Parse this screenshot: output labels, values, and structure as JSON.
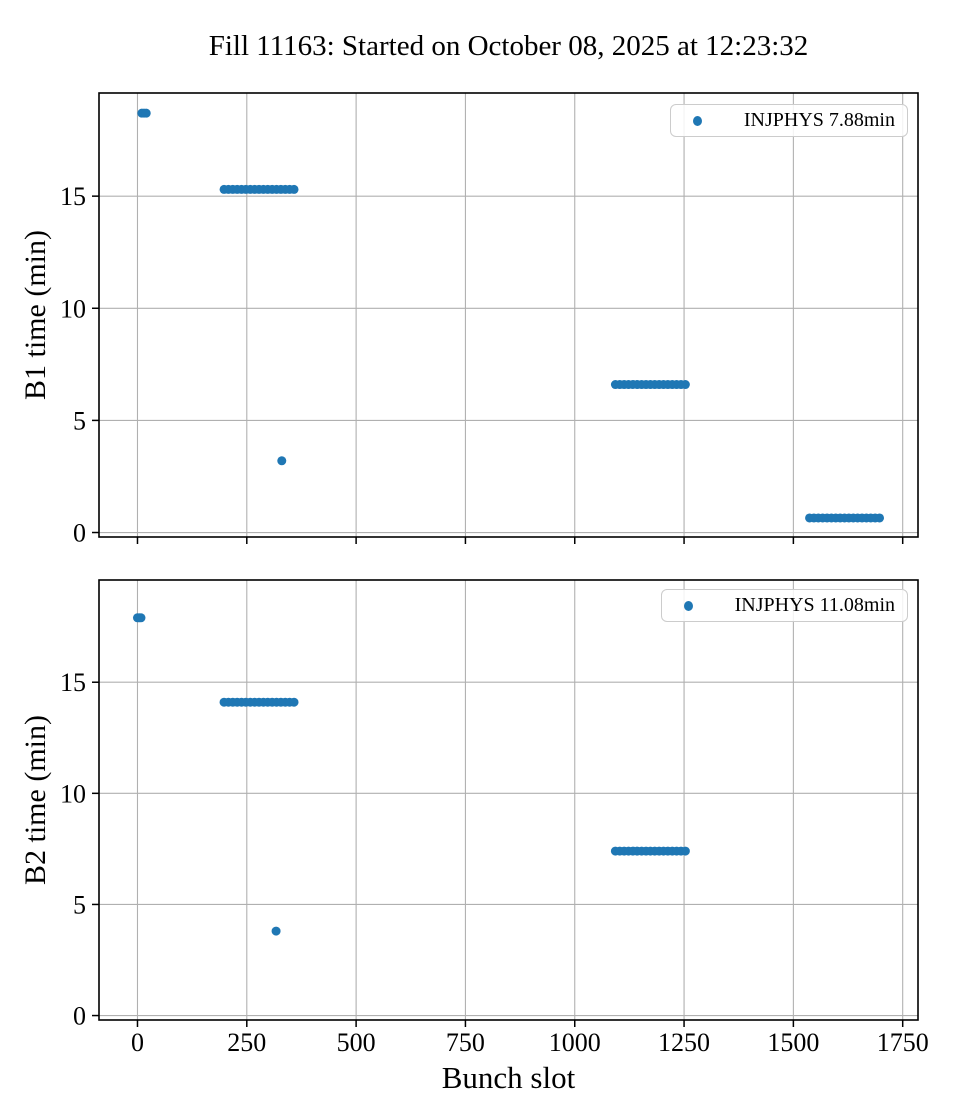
{
  "title": "Fill 11163: Started on October 08, 2025 at 12:23:32",
  "xlabel": "Bunch slot",
  "colors": {
    "marker": "#1f77b4",
    "grid": "#b0b0b0",
    "spine": "#000000",
    "text": "#000000",
    "legend_border": "#cccccc",
    "background": "#ffffff"
  },
  "chart_data": [
    {
      "type": "scatter",
      "subplot": "top",
      "ylabel": "B1 time (min)",
      "legend": "INJPHYS 7.88min",
      "legend_position": "upper right",
      "grid": true,
      "xlim": [
        -88,
        1785
      ],
      "ylim": [
        -0.2,
        19.6
      ],
      "xticks": [
        0,
        250,
        500,
        750,
        1000,
        1250,
        1500,
        1750
      ],
      "yticks": [
        0,
        5,
        10,
        15
      ],
      "show_xticklabels": false,
      "marker_radius": 4.5,
      "segments": [
        {
          "x_start": 10,
          "x_end": 20,
          "y": 18.7,
          "step": 5
        },
        {
          "x_start": 198,
          "x_end": 362,
          "y": 15.3,
          "step": 10
        },
        {
          "x_start": 330,
          "x_end": 330,
          "y": 3.2,
          "step": 1
        },
        {
          "x_start": 1093,
          "x_end": 1258,
          "y": 6.6,
          "step": 10
        },
        {
          "x_start": 1537,
          "x_end": 1702,
          "y": 0.65,
          "step": 10
        }
      ]
    },
    {
      "type": "scatter",
      "subplot": "bottom",
      "ylabel": "B2 time (min)",
      "xlabel": "Bunch slot",
      "legend": "INJPHYS 11.08min",
      "legend_position": "upper right",
      "grid": true,
      "xlim": [
        -88,
        1785
      ],
      "ylim": [
        -0.2,
        19.6
      ],
      "xticks": [
        0,
        250,
        500,
        750,
        1000,
        1250,
        1500,
        1750
      ],
      "yticks": [
        0,
        5,
        10,
        15
      ],
      "show_xticklabels": true,
      "marker_radius": 4.5,
      "segments": [
        {
          "x_start": 0,
          "x_end": 8,
          "y": 17.9,
          "step": 4
        },
        {
          "x_start": 198,
          "x_end": 362,
          "y": 14.1,
          "step": 10
        },
        {
          "x_start": 317,
          "x_end": 317,
          "y": 3.8,
          "step": 1
        },
        {
          "x_start": 1093,
          "x_end": 1258,
          "y": 7.4,
          "step": 10
        }
      ]
    }
  ]
}
